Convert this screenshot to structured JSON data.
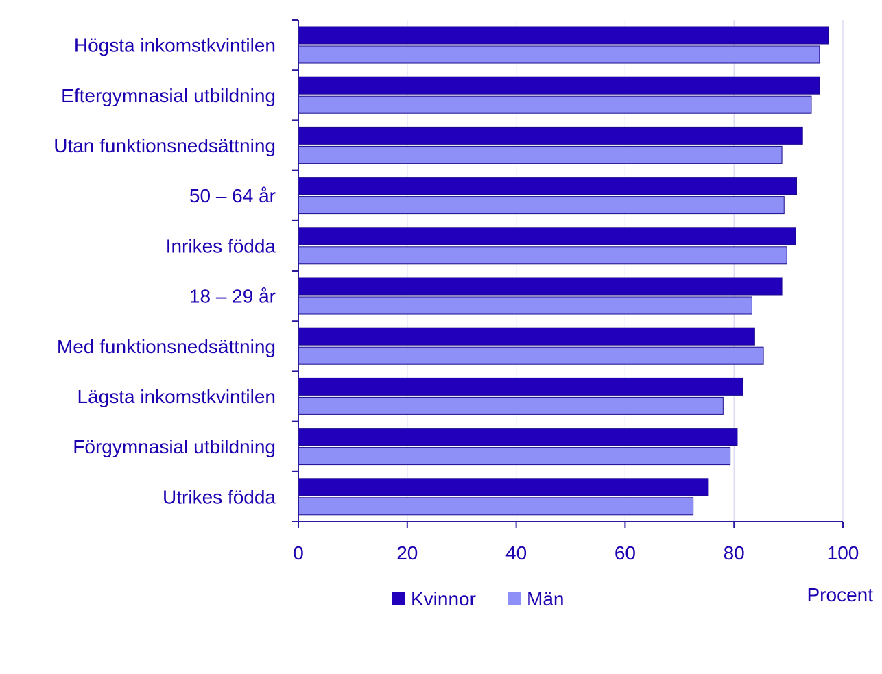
{
  "chart_data": {
    "type": "bar",
    "orientation": "horizontal",
    "categories": [
      "Högsta inkomstkvintilen",
      "Eftergymnasial utbildning",
      "Utan funktionsnedsättning",
      "50 – 64 år",
      "Inrikes födda",
      "18 – 29 år",
      "Med funktionsnedsättning",
      "Lägsta inkomstkvintilen",
      "Förgymnasial utbildning",
      "Utrikes födda"
    ],
    "series": [
      {
        "name": "Kvinnor",
        "color": "#2200bb",
        "values": [
          97.3,
          95.7,
          92.6,
          91.5,
          91.3,
          88.8,
          83.8,
          81.6,
          80.6,
          75.3
        ]
      },
      {
        "name": "Män",
        "color": "#8f8ff8",
        "values": [
          95.7,
          94.2,
          88.8,
          89.2,
          89.7,
          83.3,
          85.4,
          78.0,
          79.3,
          72.5
        ]
      }
    ],
    "xlim": [
      0,
      100
    ],
    "xticks": [
      "0",
      "20",
      "40",
      "60",
      "80",
      "100"
    ],
    "xlabel": "Procent",
    "grid": true,
    "legend_position": "bottom"
  },
  "colors": {
    "text": "#1c00b0",
    "axis": "#2a1aa0",
    "grid": "#d4d4f2",
    "bar_border": "#1a0a8c"
  }
}
